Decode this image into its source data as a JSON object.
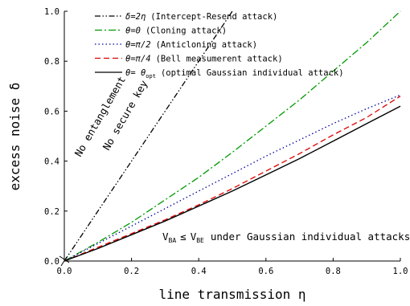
{
  "chart_data": {
    "type": "line",
    "xlabel": "line transmission η",
    "ylabel": "excess noise δ",
    "xlim": [
      0.0,
      1.0
    ],
    "ylim": [
      0.0,
      1.0
    ],
    "x_ticks": [
      "0.0",
      "0.2",
      "0.4",
      "0.6",
      "0.8",
      "1.0"
    ],
    "y_ticks": [
      "0.0",
      "0.2",
      "0.4",
      "0.6",
      "0.8",
      "1.0"
    ],
    "grid": false,
    "legend_placement": "top-center",
    "series": [
      {
        "name": "δ=2η (Intercept-Resend attack)",
        "color": "#000000",
        "dash": "dash-dot-dot",
        "x": [
          0.0,
          0.5
        ],
        "y": [
          0.0,
          1.0
        ]
      },
      {
        "name": "θ=0 (Cloning attack)",
        "color": "#009900",
        "dash": "dash-dot",
        "x": [
          0.0,
          0.1,
          0.2,
          0.3,
          0.4,
          0.5,
          0.6,
          0.7,
          0.8,
          0.9,
          1.0
        ],
        "y": [
          0.0,
          0.075,
          0.155,
          0.245,
          0.335,
          0.435,
          0.54,
          0.645,
          0.76,
          0.875,
          1.0
        ]
      },
      {
        "name": "θ=π/2 (Anticloning attack)",
        "color": "#000099",
        "dash": "dot",
        "x": [
          0.0,
          0.1,
          0.2,
          0.3,
          0.4,
          0.5,
          0.6,
          0.7,
          0.8,
          0.9,
          1.0
        ],
        "y": [
          0.0,
          0.07,
          0.14,
          0.21,
          0.28,
          0.35,
          0.42,
          0.485,
          0.55,
          0.61,
          0.665
        ]
      },
      {
        "name": "θ=π/4 (Bell measumerent attack)",
        "color": "#dd0000",
        "dash": "dash",
        "x": [
          0.0,
          0.1,
          0.2,
          0.3,
          0.4,
          0.5,
          0.6,
          0.7,
          0.8,
          0.9,
          1.0
        ],
        "y": [
          0.0,
          0.055,
          0.11,
          0.165,
          0.225,
          0.29,
          0.36,
          0.43,
          0.505,
          0.575,
          0.66
        ]
      },
      {
        "name": "θ=θopt (optimal Gaussian individual attack)",
        "color": "#000000",
        "dash": "solid",
        "x": [
          0.0,
          0.1,
          0.2,
          0.3,
          0.4,
          0.5,
          0.6,
          0.7,
          0.8,
          0.9,
          1.0
        ],
        "y": [
          0.0,
          0.05,
          0.105,
          0.16,
          0.22,
          0.28,
          0.345,
          0.41,
          0.48,
          0.55,
          0.62
        ]
      }
    ],
    "legend": [
      {
        "prefix": "δ=2η",
        "label": "(Intercept-Resend attack)"
      },
      {
        "prefix": "θ=0",
        "label": "(Cloning attack)"
      },
      {
        "prefix": "θ=π/2",
        "label": "(Anticloning attack)"
      },
      {
        "prefix": "θ=π/4",
        "label": "(Bell measumerent attack)"
      },
      {
        "prefix": "θ= θ",
        "sub": "opt",
        "label": "(optimal Gaussian individual attack)"
      }
    ],
    "annotations": {
      "no_entanglement": "No entanglement",
      "no_secure_key": "No secure key",
      "condition_v1": "V",
      "condition_sub1": "BA",
      "condition_le": "≤",
      "condition_v2": "V",
      "condition_sub2": "BE",
      "condition_tail": "under Gaussian individual attacks"
    }
  }
}
